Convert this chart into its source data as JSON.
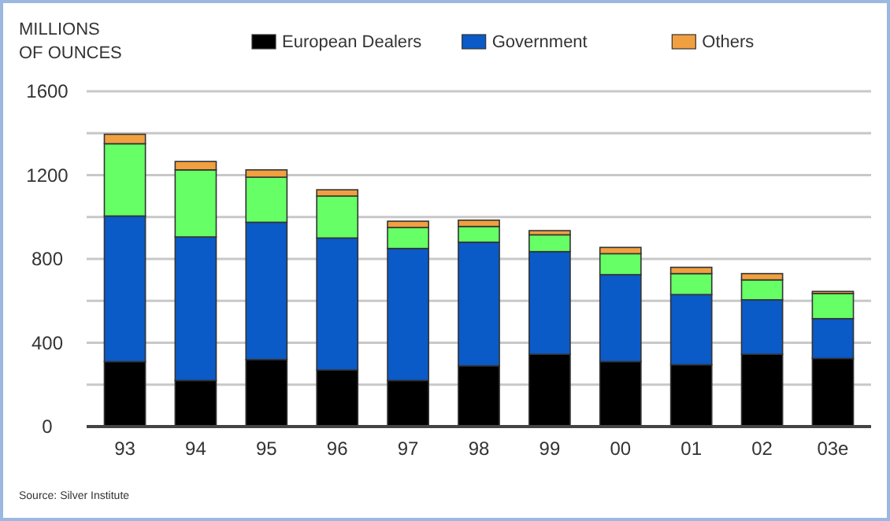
{
  "chart_data": {
    "type": "bar",
    "stacked": true,
    "ylabel": "MILLIONS OF OUNCES",
    "categories": [
      "93",
      "94",
      "95",
      "96",
      "97",
      "98",
      "99",
      "00",
      "01",
      "02",
      "03e"
    ],
    "series": [
      {
        "name": "European Dealers",
        "color": "#000000",
        "values": [
          310,
          220,
          320,
          270,
          220,
          290,
          345,
          310,
          295,
          345,
          325
        ]
      },
      {
        "name": "Government",
        "color": "#0a5ac8",
        "values": [
          695,
          685,
          655,
          630,
          630,
          590,
          490,
          415,
          335,
          260,
          190
        ]
      },
      {
        "color": "#66ff66",
        "values": [
          345,
          320,
          215,
          200,
          100,
          75,
          80,
          100,
          100,
          95,
          120
        ]
      },
      {
        "name": "Others",
        "color": "#f0a040",
        "values": [
          45,
          40,
          35,
          30,
          30,
          30,
          20,
          30,
          30,
          30,
          10
        ]
      }
    ],
    "ylim": [
      0,
      1600
    ],
    "yticks": [
      0,
      400,
      800,
      1200,
      1600
    ],
    "grid": "y",
    "legend": "top",
    "annotations": [
      "Source: Silver Institute"
    ]
  }
}
